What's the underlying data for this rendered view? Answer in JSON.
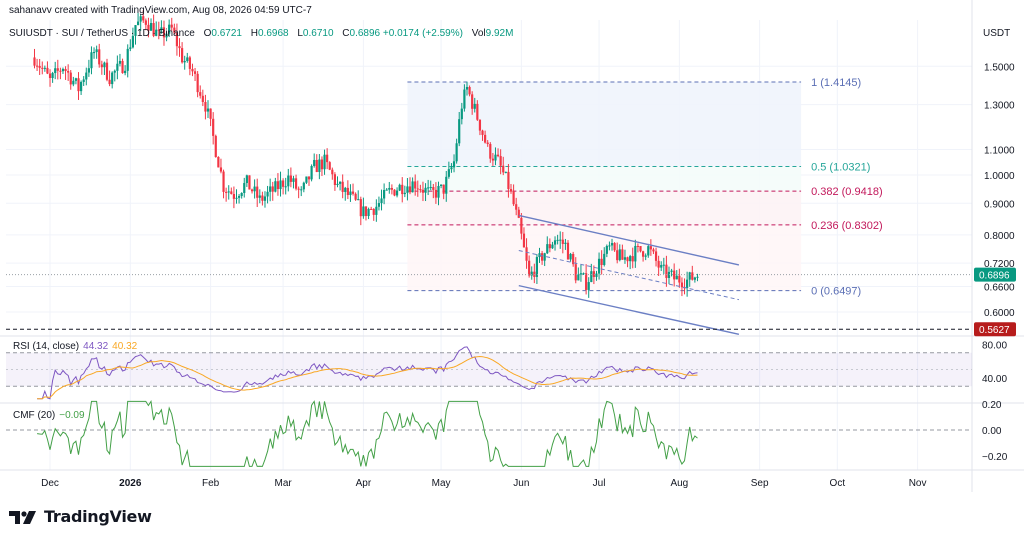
{
  "header": {
    "credit": "sahanavv created with TradingView.com, Aug 08, 2026 04:59 UTC-7",
    "symbol": "SUIUSDT · SUI / TetherUS · 1D · Binance",
    "open_label": "O",
    "open": "0.6721",
    "high_label": "H",
    "high": "0.6968",
    "low_label": "L",
    "low": "0.6710",
    "close_label": "C",
    "close": "0.6896",
    "change": "+0.0174 (+2.59%)",
    "vol_label": "Vol",
    "vol": "9.92M",
    "unit": "USDT"
  },
  "logo": {
    "text": "TradingView"
  },
  "colors": {
    "up": "#089981",
    "down": "#f23645",
    "fib_blue": "#5b6fb5",
    "fib_teal": "#26a69a",
    "fib_red": "#c2185b",
    "channel": "#6b7fc4",
    "rsi": "#7e57c2",
    "rsi_ma": "#f9a825",
    "cmf": "#43a047"
  },
  "chart_data": {
    "type": "candlestick",
    "symbol": "SUIUSDT",
    "timeframe": "1D",
    "price_axis": {
      "scale": "log",
      "ticks": [
        "1.5000",
        "1.3000",
        "1.1000",
        "1.0000",
        "0.9000",
        "0.8000",
        "0.7200",
        "0.6600",
        "0.6000"
      ]
    },
    "price_labels": [
      {
        "value": "0.6896",
        "kind": "last",
        "color": "#089981"
      },
      {
        "value": "0.5627",
        "kind": "level",
        "color": "#b71c1c"
      }
    ],
    "time_axis": [
      "Dec",
      "2026",
      "Feb",
      "Mar",
      "Apr",
      "May",
      "Jun",
      "Jul",
      "Aug",
      "Sep",
      "Oct",
      "Nov"
    ],
    "fib_levels": [
      {
        "label": "1 (1.4145)",
        "value": 1.4145,
        "color": "#5b6fb5"
      },
      {
        "label": "0.5 (1.0321)",
        "value": 1.0321,
        "color": "#26a69a"
      },
      {
        "label": "0.382 (0.9418)",
        "value": 0.9418,
        "color": "#c2185b"
      },
      {
        "label": "0.236 (0.8302)",
        "value": 0.8302,
        "color": "#c2185b"
      },
      {
        "label": "0 (0.6497)",
        "value": 0.6497,
        "color": "#5b6fb5"
      }
    ],
    "horizontal_level": 0.5627,
    "channel": {
      "upper": [
        [
          "2026-05-31",
          0.86
        ],
        [
          "2026-08-24",
          0.715
        ]
      ],
      "lower": [
        [
          "2026-05-31",
          0.662
        ],
        [
          "2026-08-24",
          0.552
        ]
      ]
    },
    "price_path": [
      [
        "2025-11-25",
        1.55
      ],
      [
        "2025-12-01",
        1.42
      ],
      [
        "2025-12-06",
        1.5
      ],
      [
        "2025-12-12",
        1.38
      ],
      [
        "2025-12-18",
        1.58
      ],
      [
        "2025-12-24",
        1.44
      ],
      [
        "2025-12-30",
        1.52
      ],
      [
        "2026-01-03",
        1.75
      ],
      [
        "2026-01-07",
        1.78
      ],
      [
        "2026-01-12",
        1.68
      ],
      [
        "2026-01-17",
        1.72
      ],
      [
        "2026-01-21",
        1.55
      ],
      [
        "2026-01-25",
        1.47
      ],
      [
        "2026-01-30",
        1.3
      ],
      [
        "2026-02-03",
        1.1
      ],
      [
        "2026-02-06",
        0.96
      ],
      [
        "2026-02-10",
        0.93
      ],
      [
        "2026-02-15",
        0.97
      ],
      [
        "2026-02-20",
        0.91
      ],
      [
        "2026-02-26",
        0.95
      ],
      [
        "2026-03-03",
        0.99
      ],
      [
        "2026-03-08",
        0.93
      ],
      [
        "2026-03-13",
        1.03
      ],
      [
        "2026-03-17",
        1.05
      ],
      [
        "2026-03-22",
        0.96
      ],
      [
        "2026-03-27",
        0.92
      ],
      [
        "2026-04-01",
        0.87
      ],
      [
        "2026-04-06",
        0.89
      ],
      [
        "2026-04-11",
        0.94
      ],
      [
        "2026-04-16",
        0.96
      ],
      [
        "2026-04-21",
        0.97
      ],
      [
        "2026-04-27",
        0.93
      ],
      [
        "2026-05-02",
        0.95
      ],
      [
        "2026-05-06",
        1.05
      ],
      [
        "2026-05-09",
        1.3
      ],
      [
        "2026-05-11",
        1.38
      ],
      [
        "2026-05-15",
        1.24
      ],
      [
        "2026-05-19",
        1.1
      ],
      [
        "2026-05-23",
        1.05
      ],
      [
        "2026-05-27",
        0.96
      ],
      [
        "2026-05-31",
        0.83
      ],
      [
        "2026-06-04",
        0.68
      ],
      [
        "2026-06-09",
        0.74
      ],
      [
        "2026-06-14",
        0.79
      ],
      [
        "2026-06-18",
        0.77
      ],
      [
        "2026-06-22",
        0.69
      ],
      [
        "2026-06-26",
        0.67
      ],
      [
        "2026-07-01",
        0.72
      ],
      [
        "2026-07-05",
        0.76
      ],
      [
        "2026-07-10",
        0.73
      ],
      [
        "2026-07-15",
        0.75
      ],
      [
        "2026-07-20",
        0.76
      ],
      [
        "2026-07-25",
        0.7
      ],
      [
        "2026-07-30",
        0.68
      ],
      [
        "2026-08-04",
        0.675
      ],
      [
        "2026-08-08",
        0.6896
      ]
    ],
    "indicators": [
      {
        "name": "RSI (14, close)",
        "values": [
          "44.32",
          "40.32"
        ],
        "ticks": [
          "80.00",
          "40.00"
        ],
        "bands": [
          70,
          30
        ]
      },
      {
        "name": "CMF (20)",
        "values": [
          "−0.09"
        ],
        "ticks": [
          "0.20",
          "0.00",
          "−0.20"
        ]
      }
    ]
  }
}
